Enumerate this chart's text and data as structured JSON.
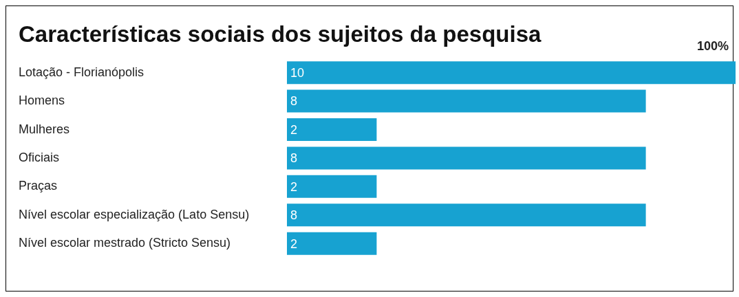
{
  "chart_data": {
    "type": "bar",
    "orientation": "horizontal",
    "title": "Características sociais dos sujeitos da pesquisa",
    "categories": [
      "Lotação - Florianópolis",
      "Homens",
      "Mulheres",
      "Oficiais",
      "Praças",
      "Nível escolar especialização (Lato Sensu)",
      "Nível escolar mestrado (Stricto Sensu)"
    ],
    "values": [
      10,
      8,
      2,
      8,
      2,
      8,
      2
    ],
    "color": "#17a2d1",
    "data_labels": true,
    "annotations": [
      "100%"
    ]
  }
}
